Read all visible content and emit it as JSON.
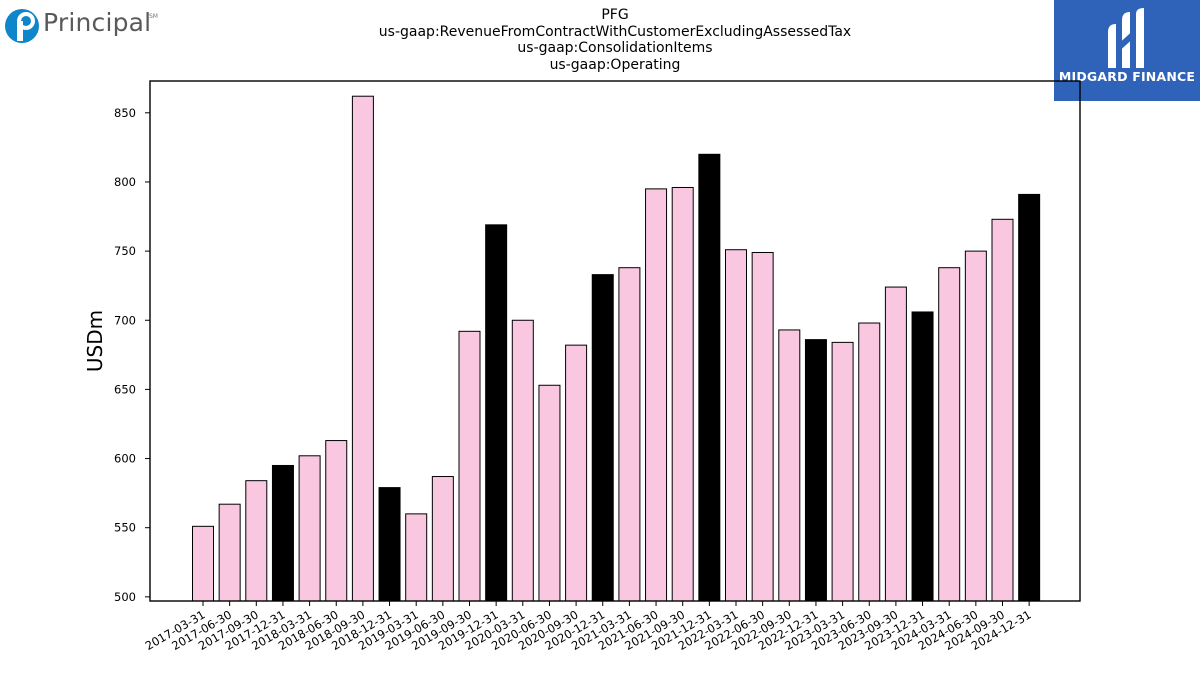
{
  "logos": {
    "left_brand": "Principal",
    "left_mark": "SM",
    "right_brand": "MIDGARD FINANCE"
  },
  "chart_data": {
    "type": "bar",
    "title": "PFG",
    "subtitle_lines": [
      "us-gaap:RevenueFromContractWithCustomerExcludingAssessedTax",
      "us-gaap:ConsolidationItems",
      "us-gaap:Operating"
    ],
    "xlabel": "",
    "ylabel": "USDm",
    "ylim": [
      497,
      873
    ],
    "yticks": [
      500,
      550,
      600,
      650,
      700,
      750,
      800,
      850
    ],
    "grid": false,
    "colors": {
      "quarter": "#f9c8e0",
      "year_end": "#000000",
      "edge": "#000000"
    },
    "categories": [
      "2017-03-31",
      "2017-06-30",
      "2017-09-30",
      "2017-12-31",
      "2018-03-31",
      "2018-06-30",
      "2018-09-30",
      "2018-12-31",
      "2019-03-31",
      "2019-06-30",
      "2019-09-30",
      "2019-12-31",
      "2020-03-31",
      "2020-06-30",
      "2020-09-30",
      "2020-12-31",
      "2021-03-31",
      "2021-06-30",
      "2021-09-30",
      "2021-12-31",
      "2022-03-31",
      "2022-06-30",
      "2022-09-30",
      "2022-12-31",
      "2023-03-31",
      "2023-06-30",
      "2023-09-30",
      "2023-12-31",
      "2024-03-31",
      "2024-06-30",
      "2024-09-30",
      "2024-12-31"
    ],
    "values": [
      551,
      567,
      584,
      595,
      602,
      613,
      862,
      579,
      560,
      587,
      692,
      769,
      700,
      653,
      682,
      733,
      738,
      795,
      796,
      820,
      751,
      749,
      693,
      686,
      684,
      698,
      724,
      706,
      738,
      750,
      773,
      791
    ]
  }
}
